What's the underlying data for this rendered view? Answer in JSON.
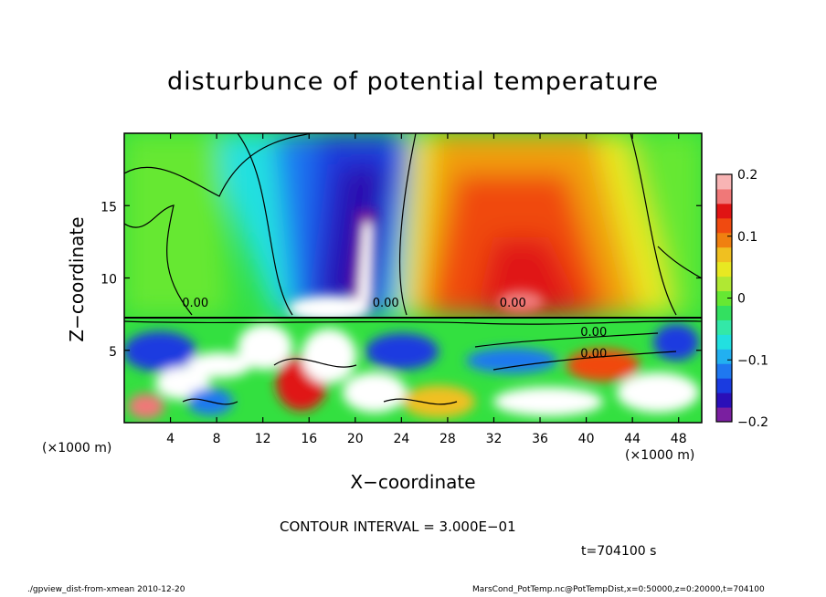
{
  "chart_data": {
    "type": "heatmap",
    "title": "disturbunce of potential temperature",
    "xlabel": "X−coordinate",
    "ylabel": "Z−coordinate",
    "x_unit_label": "(×1000 m)",
    "z_unit_label": "(×1000 m)",
    "x_ticks": [
      4,
      8,
      12,
      16,
      20,
      24,
      28,
      32,
      36,
      40,
      44,
      48
    ],
    "y_ticks": [
      5,
      10,
      15
    ],
    "xlim": [
      0,
      50
    ],
    "ylim": [
      0,
      20
    ],
    "colorbar": {
      "ticks": [
        "0.2",
        "0.1",
        "0",
        "−0.1",
        "−0.2"
      ],
      "tick_values": [
        0.2,
        0.1,
        0,
        -0.1,
        -0.2
      ],
      "range": [
        -0.2,
        0.2
      ],
      "colors": [
        "#7a1fa0",
        "#2a0fb8",
        "#1a3be0",
        "#1f78f0",
        "#22b0f0",
        "#22e0e0",
        "#33e8a8",
        "#33e060",
        "#66e833",
        "#b0e833",
        "#e8e822",
        "#f0c020",
        "#f08010",
        "#f04a10",
        "#e01414",
        "#f07878",
        "#f8b4b4"
      ]
    },
    "contour_label": "0.00",
    "contour_interval_text": "CONTOUR INTERVAL = 3.000E−01",
    "time_text": "t=704100 s"
  },
  "footer": {
    "left": "./gpview_dist-from-xmean  2010-12-20",
    "right": "MarsCond_PotTemp.nc@PotTempDist,x=0:50000,z=0:20000,t=704100"
  },
  "colors": {
    "neutral": "#33e040",
    "negative_core": "#1a10c0",
    "positive_core": "#e81818",
    "white_patch": "#ffffff"
  }
}
